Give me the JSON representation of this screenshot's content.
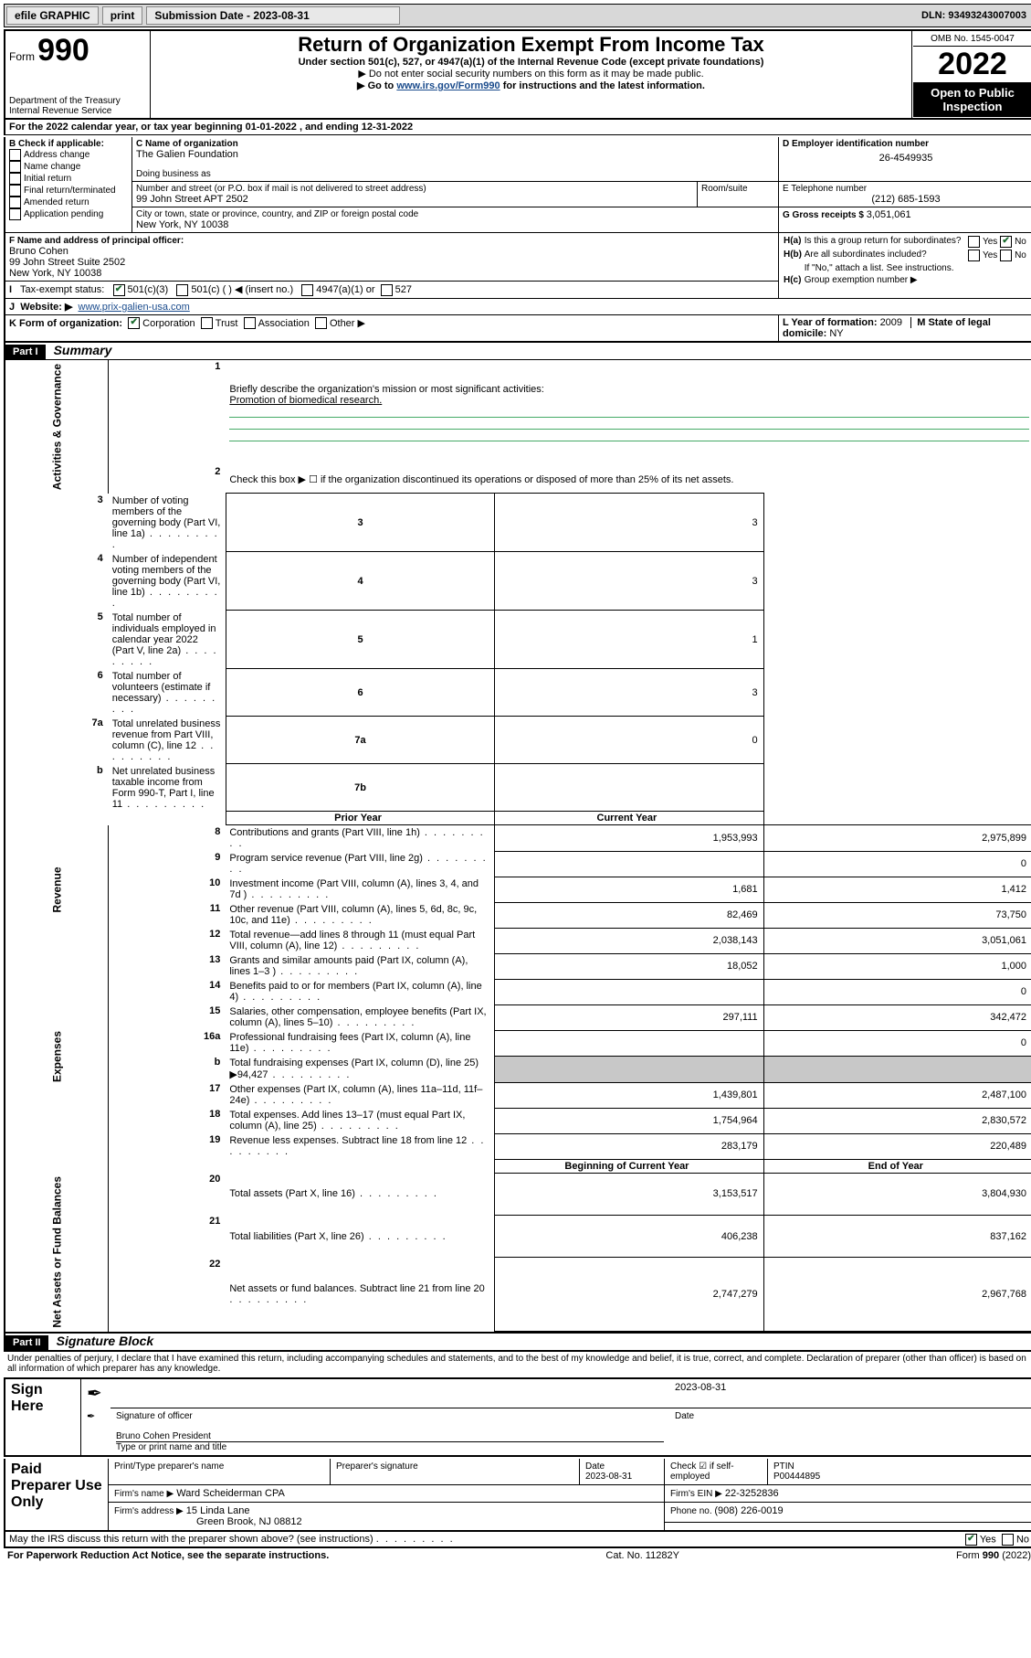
{
  "topbar": {
    "efile": "efile GRAPHIC",
    "print": "print",
    "sub_label": "Submission Date - ",
    "sub_date": "2023-08-31",
    "dln_label": "DLN: ",
    "dln": "93493243007003"
  },
  "header": {
    "form_word": "Form",
    "form_no": "990",
    "dept": "Department of the Treasury",
    "irs": "Internal Revenue Service",
    "title": "Return of Organization Exempt From Income Tax",
    "sub1": "Under section 501(c), 527, or 4947(a)(1) of the Internal Revenue Code (except private foundations)",
    "sub2": "▶ Do not enter social security numbers on this form as it may be made public.",
    "sub3_pre": "▶ Go to ",
    "sub3_link": "www.irs.gov/Form990",
    "sub3_post": " for instructions and the latest information.",
    "omb": "OMB No. 1545-0047",
    "year": "2022",
    "open": "Open to Public Inspection"
  },
  "A": {
    "text": "For the 2022 calendar year, or tax year beginning ",
    "begin": "01-01-2022",
    "mid": " , and ending ",
    "end": "12-31-2022"
  },
  "B": {
    "label": "B Check if applicable:",
    "items": [
      "Address change",
      "Name change",
      "Initial return",
      "Final return/terminated",
      "Amended return",
      "Application pending"
    ],
    "checked": [
      false,
      false,
      false,
      false,
      false,
      false
    ]
  },
  "C": {
    "name_label": "C Name of organization",
    "name": "The Galien Foundation",
    "dba_label": "Doing business as",
    "addr_label": "Number and street (or P.O. box if mail is not delivered to street address)",
    "room_label": "Room/suite",
    "addr": "99 John Street APT 2502",
    "city_label": "City or town, state or province, country, and ZIP or foreign postal code",
    "city": "New York, NY  10038"
  },
  "D": {
    "label": "D Employer identification number",
    "value": "26-4549935"
  },
  "E": {
    "label": "E Telephone number",
    "value": "(212) 685-1593"
  },
  "G": {
    "label": "G Gross receipts $ ",
    "value": "3,051,061"
  },
  "F": {
    "label": "F Name and address of principal officer:",
    "name": "Bruno Cohen",
    "addr1": "99 John Street Suite 2502",
    "addr2": "New York, NY  10038"
  },
  "H": {
    "a": "Is this a group return for subordinates?",
    "a_yes": "Yes",
    "a_no": "No",
    "b": "Are all subordinates included?",
    "b_yes": "Yes",
    "b_no": "No",
    "b_note": "If \"No,\" attach a list. See instructions.",
    "c": "Group exemption number ▶"
  },
  "I": {
    "label": "Tax-exempt status:",
    "opts": [
      "501(c)(3)",
      "501(c) (  ) ◀ (insert no.)",
      "4947(a)(1) or",
      "527"
    ]
  },
  "J": {
    "label": "Website: ▶",
    "value": "www.prix-galien-usa.com"
  },
  "K": {
    "label": "K Form of organization:",
    "opts": [
      "Corporation",
      "Trust",
      "Association",
      "Other ▶"
    ]
  },
  "L": {
    "label": "L Year of formation: ",
    "value": "2009"
  },
  "M": {
    "label": "M State of legal domicile: ",
    "value": "NY"
  },
  "partI": {
    "bar": "Part I",
    "title": "Summary",
    "q1": "Briefly describe the organization's mission or most significant activities:",
    "q1ans": "Promotion of biomedical research.",
    "q2": "Check this box ▶ ☐  if the organization discontinued its operations or disposed of more than 25% of its net assets.",
    "rows_gov": [
      {
        "n": "3",
        "t": "Number of voting members of the governing body (Part VI, line 1a)",
        "box": "3",
        "v": "3"
      },
      {
        "n": "4",
        "t": "Number of independent voting members of the governing body (Part VI, line 1b)",
        "box": "4",
        "v": "3"
      },
      {
        "n": "5",
        "t": "Total number of individuals employed in calendar year 2022 (Part V, line 2a)",
        "box": "5",
        "v": "1"
      },
      {
        "n": "6",
        "t": "Total number of volunteers (estimate if necessary)",
        "box": "6",
        "v": "3"
      },
      {
        "n": "7a",
        "t": "Total unrelated business revenue from Part VIII, column (C), line 12",
        "box": "7a",
        "v": "0"
      },
      {
        "n": "b",
        "t": "Net unrelated business taxable income from Form 990-T, Part I, line 11",
        "box": "7b",
        "v": ""
      }
    ],
    "hdr_prior": "Prior Year",
    "hdr_curr": "Current Year",
    "rev": [
      {
        "n": "8",
        "t": "Contributions and grants (Part VIII, line 1h)",
        "p": "1,953,993",
        "c": "2,975,899"
      },
      {
        "n": "9",
        "t": "Program service revenue (Part VIII, line 2g)",
        "p": "",
        "c": "0"
      },
      {
        "n": "10",
        "t": "Investment income (Part VIII, column (A), lines 3, 4, and 7d )",
        "p": "1,681",
        "c": "1,412"
      },
      {
        "n": "11",
        "t": "Other revenue (Part VIII, column (A), lines 5, 6d, 8c, 9c, 10c, and 11e)",
        "p": "82,469",
        "c": "73,750"
      },
      {
        "n": "12",
        "t": "Total revenue—add lines 8 through 11 (must equal Part VIII, column (A), line 12)",
        "p": "2,038,143",
        "c": "3,051,061"
      }
    ],
    "exp": [
      {
        "n": "13",
        "t": "Grants and similar amounts paid (Part IX, column (A), lines 1–3 )",
        "p": "18,052",
        "c": "1,000"
      },
      {
        "n": "14",
        "t": "Benefits paid to or for members (Part IX, column (A), line 4)",
        "p": "",
        "c": "0"
      },
      {
        "n": "15",
        "t": "Salaries, other compensation, employee benefits (Part IX, column (A), lines 5–10)",
        "p": "297,111",
        "c": "342,472"
      },
      {
        "n": "16a",
        "t": "Professional fundraising fees (Part IX, column (A), line 11e)",
        "p": "",
        "c": "0"
      },
      {
        "n": "b",
        "t": "Total fundraising expenses (Part IX, column (D), line 25) ▶94,427",
        "p": "GRAY",
        "c": "GRAY"
      },
      {
        "n": "17",
        "t": "Other expenses (Part IX, column (A), lines 11a–11d, 11f–24e)",
        "p": "1,439,801",
        "c": "2,487,100"
      },
      {
        "n": "18",
        "t": "Total expenses. Add lines 13–17 (must equal Part IX, column (A), line 25)",
        "p": "1,754,964",
        "c": "2,830,572"
      },
      {
        "n": "19",
        "t": "Revenue less expenses. Subtract line 18 from line 12",
        "p": "283,179",
        "c": "220,489"
      }
    ],
    "hdr_beg": "Beginning of Current Year",
    "hdr_end": "End of Year",
    "net": [
      {
        "n": "20",
        "t": "Total assets (Part X, line 16)",
        "p": "3,153,517",
        "c": "3,804,930"
      },
      {
        "n": "21",
        "t": "Total liabilities (Part X, line 26)",
        "p": "406,238",
        "c": "837,162"
      },
      {
        "n": "22",
        "t": "Net assets or fund balances. Subtract line 21 from line 20",
        "p": "2,747,279",
        "c": "2,967,768"
      }
    ],
    "vlabels": {
      "gov": "Activities & Governance",
      "rev": "Revenue",
      "exp": "Expenses",
      "net": "Net Assets or Fund Balances"
    }
  },
  "partII": {
    "bar": "Part II",
    "title": "Signature Block",
    "decl": "Under penalties of perjury, I declare that I have examined this return, including accompanying schedules and statements, and to the best of my knowledge and belief, it is true, correct, and complete. Declaration of preparer (other than officer) is based on all information of which preparer has any knowledge."
  },
  "sign": {
    "here": "Sign Here",
    "sig_label": "Signature of officer",
    "date_label": "Date",
    "date": "2023-08-31",
    "name": "Bruno Cohen  President",
    "name_label": "Type or print name and title"
  },
  "paid": {
    "title": "Paid Preparer Use Only",
    "h1": "Print/Type preparer's name",
    "h2": "Preparer's signature",
    "h3": "Date",
    "date": "2023-08-31",
    "h4": "Check ☑ if self-employed",
    "h5": "PTIN",
    "ptin": "P00444895",
    "firm_label": "Firm's name   ▶",
    "firm": "Ward Scheiderman CPA",
    "ein_label": "Firm's EIN ▶",
    "ein": "22-3252836",
    "addr_label": "Firm's address ▶",
    "addr1": "15 Linda Lane",
    "addr2": "Green Brook, NJ  08812",
    "phone_label": "Phone no. ",
    "phone": "(908) 226-0019"
  },
  "discuss": {
    "q": "May the IRS discuss this return with the preparer shown above? (see instructions)",
    "yes": "Yes",
    "no": "No"
  },
  "footer": {
    "left": "For Paperwork Reduction Act Notice, see the separate instructions.",
    "mid": "Cat. No. 11282Y",
    "right_pre": "Form ",
    "right_form": "990",
    "right_post": " (2022)"
  }
}
